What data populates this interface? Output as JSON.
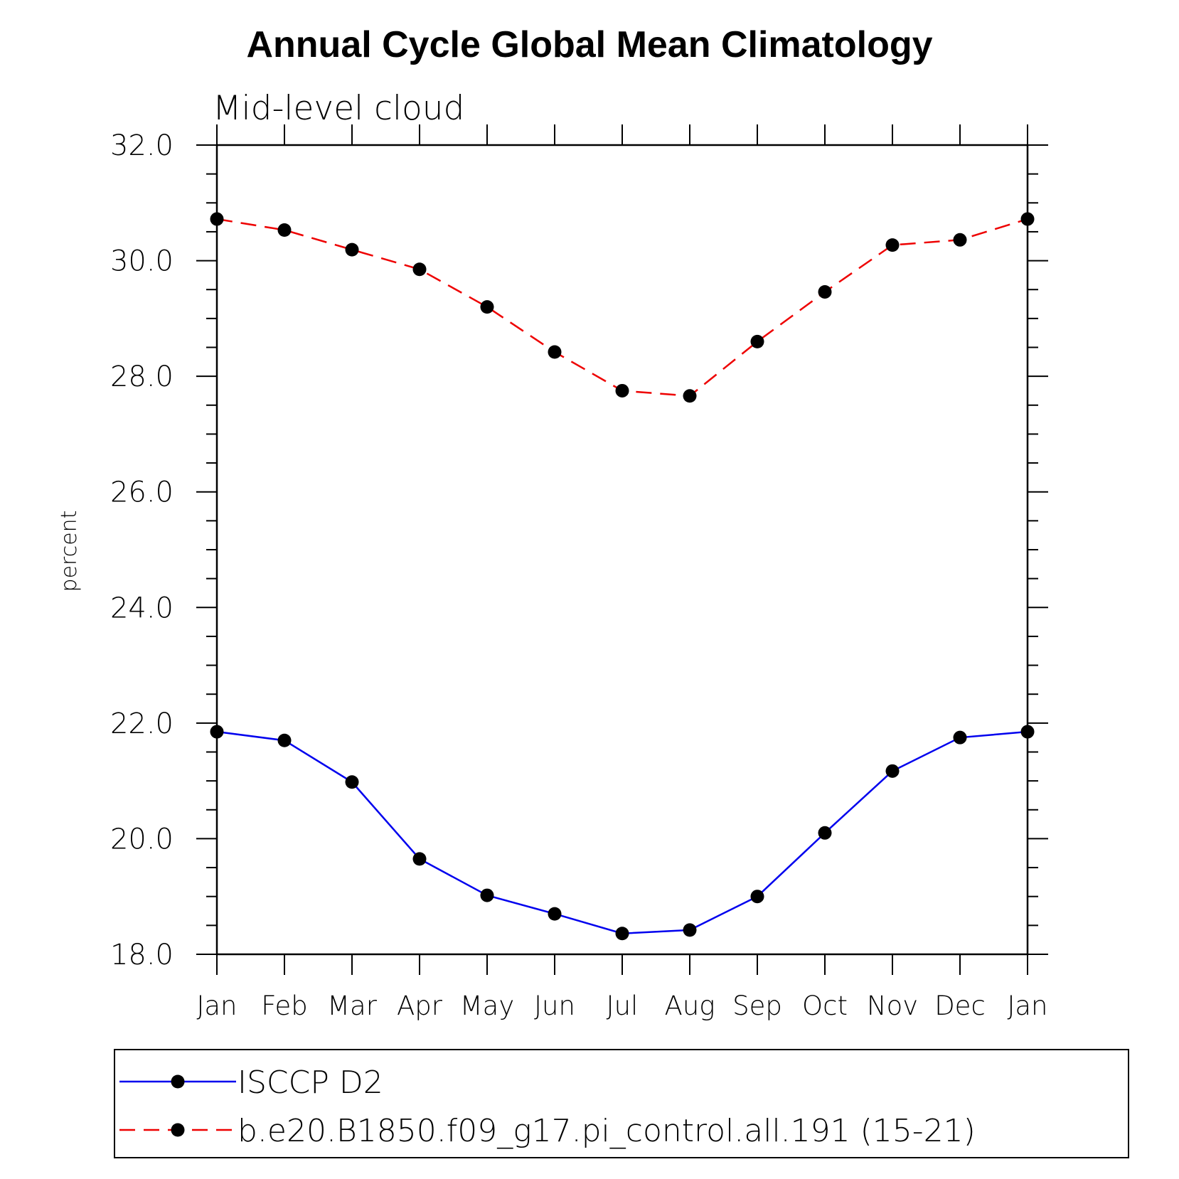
{
  "chart_data": {
    "type": "line",
    "title": "Annual Cycle Global Mean Climatology",
    "subtitle": "Mid-level cloud",
    "xlabel": "",
    "ylabel": "percent",
    "ylim": [
      18.0,
      32.0
    ],
    "yticks": [
      "18.0",
      "20.0",
      "22.0",
      "24.0",
      "26.0",
      "28.0",
      "30.0",
      "32.0"
    ],
    "categories": [
      "Jan",
      "Feb",
      "Mar",
      "Apr",
      "May",
      "Jun",
      "Jul",
      "Aug",
      "Sep",
      "Oct",
      "Nov",
      "Dec",
      "Jan"
    ],
    "series": [
      {
        "name": "ISCCP D2",
        "color": "#0000ee",
        "dash": "solid",
        "values": [
          21.85,
          21.7,
          20.98,
          19.65,
          19.02,
          18.7,
          18.36,
          18.42,
          19.0,
          20.1,
          21.17,
          21.75,
          21.85
        ]
      },
      {
        "name": "b.e20.B1850.f09_g17.pi_control.all.191 (15-21)",
        "color": "#ee0000",
        "dash": "dashed",
        "values": [
          30.72,
          30.53,
          30.19,
          29.85,
          29.2,
          28.42,
          27.75,
          27.66,
          28.6,
          29.46,
          30.27,
          30.36,
          30.72
        ]
      }
    ]
  }
}
